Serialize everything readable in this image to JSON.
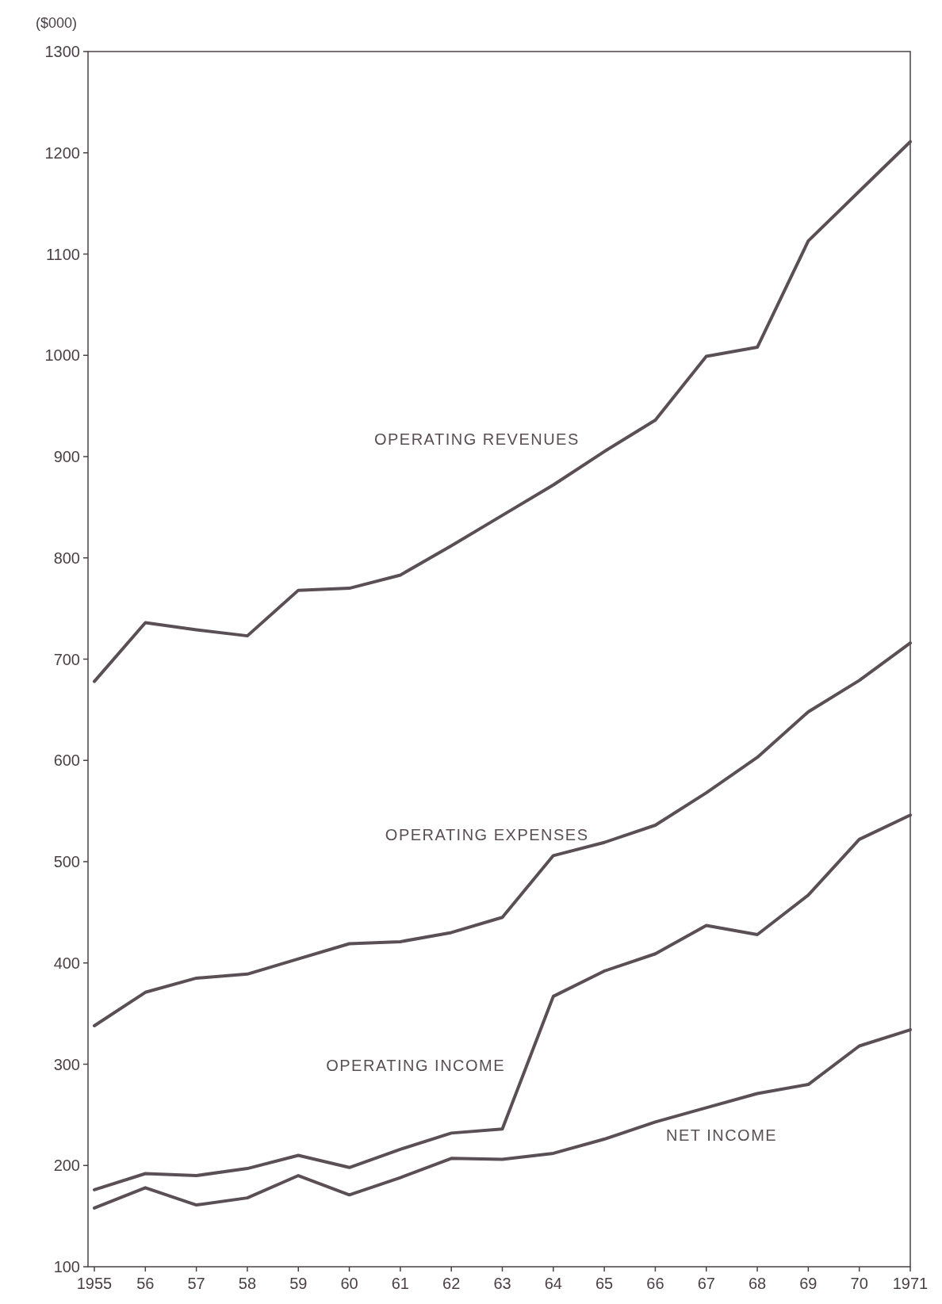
{
  "chart_data": {
    "type": "line",
    "ylabel": "($000)",
    "categories": [
      "1955",
      "56",
      "57",
      "58",
      "59",
      "60",
      "61",
      "62",
      "63",
      "64",
      "65",
      "66",
      "67",
      "68",
      "69",
      "70",
      "1971"
    ],
    "ylim": [
      100,
      1300
    ],
    "yticks": [
      100,
      200,
      300,
      400,
      500,
      600,
      700,
      800,
      900,
      1000,
      1100,
      1200,
      1300
    ],
    "grid": false,
    "marker": "none",
    "line_style": "solid",
    "series": [
      {
        "name": "OPERATING REVENUES",
        "color": "#5a4f55",
        "values": [
          678,
          736,
          729,
          723,
          768,
          770,
          783,
          812,
          842,
          872,
          905,
          936,
          999,
          1008,
          1113,
          1162,
          1211
        ]
      },
      {
        "name": "OPERATING EXPENSES",
        "color": "#5a4f55",
        "values": [
          338,
          371,
          385,
          389,
          404,
          419,
          421,
          430,
          445,
          506,
          519,
          536,
          568,
          603,
          648,
          679,
          716
        ]
      },
      {
        "name": "OPERATING INCOME",
        "color": "#5a4f55",
        "values": [
          176,
          192,
          190,
          197,
          210,
          198,
          216,
          232,
          236,
          367,
          392,
          409,
          437,
          428,
          467,
          522,
          546
        ]
      },
      {
        "name": "NET INCOME",
        "color": "#5a4f55",
        "values": [
          158,
          178,
          161,
          168,
          190,
          171,
          188,
          207,
          206,
          212,
          226,
          243,
          257,
          271,
          280,
          318,
          334
        ]
      }
    ]
  }
}
